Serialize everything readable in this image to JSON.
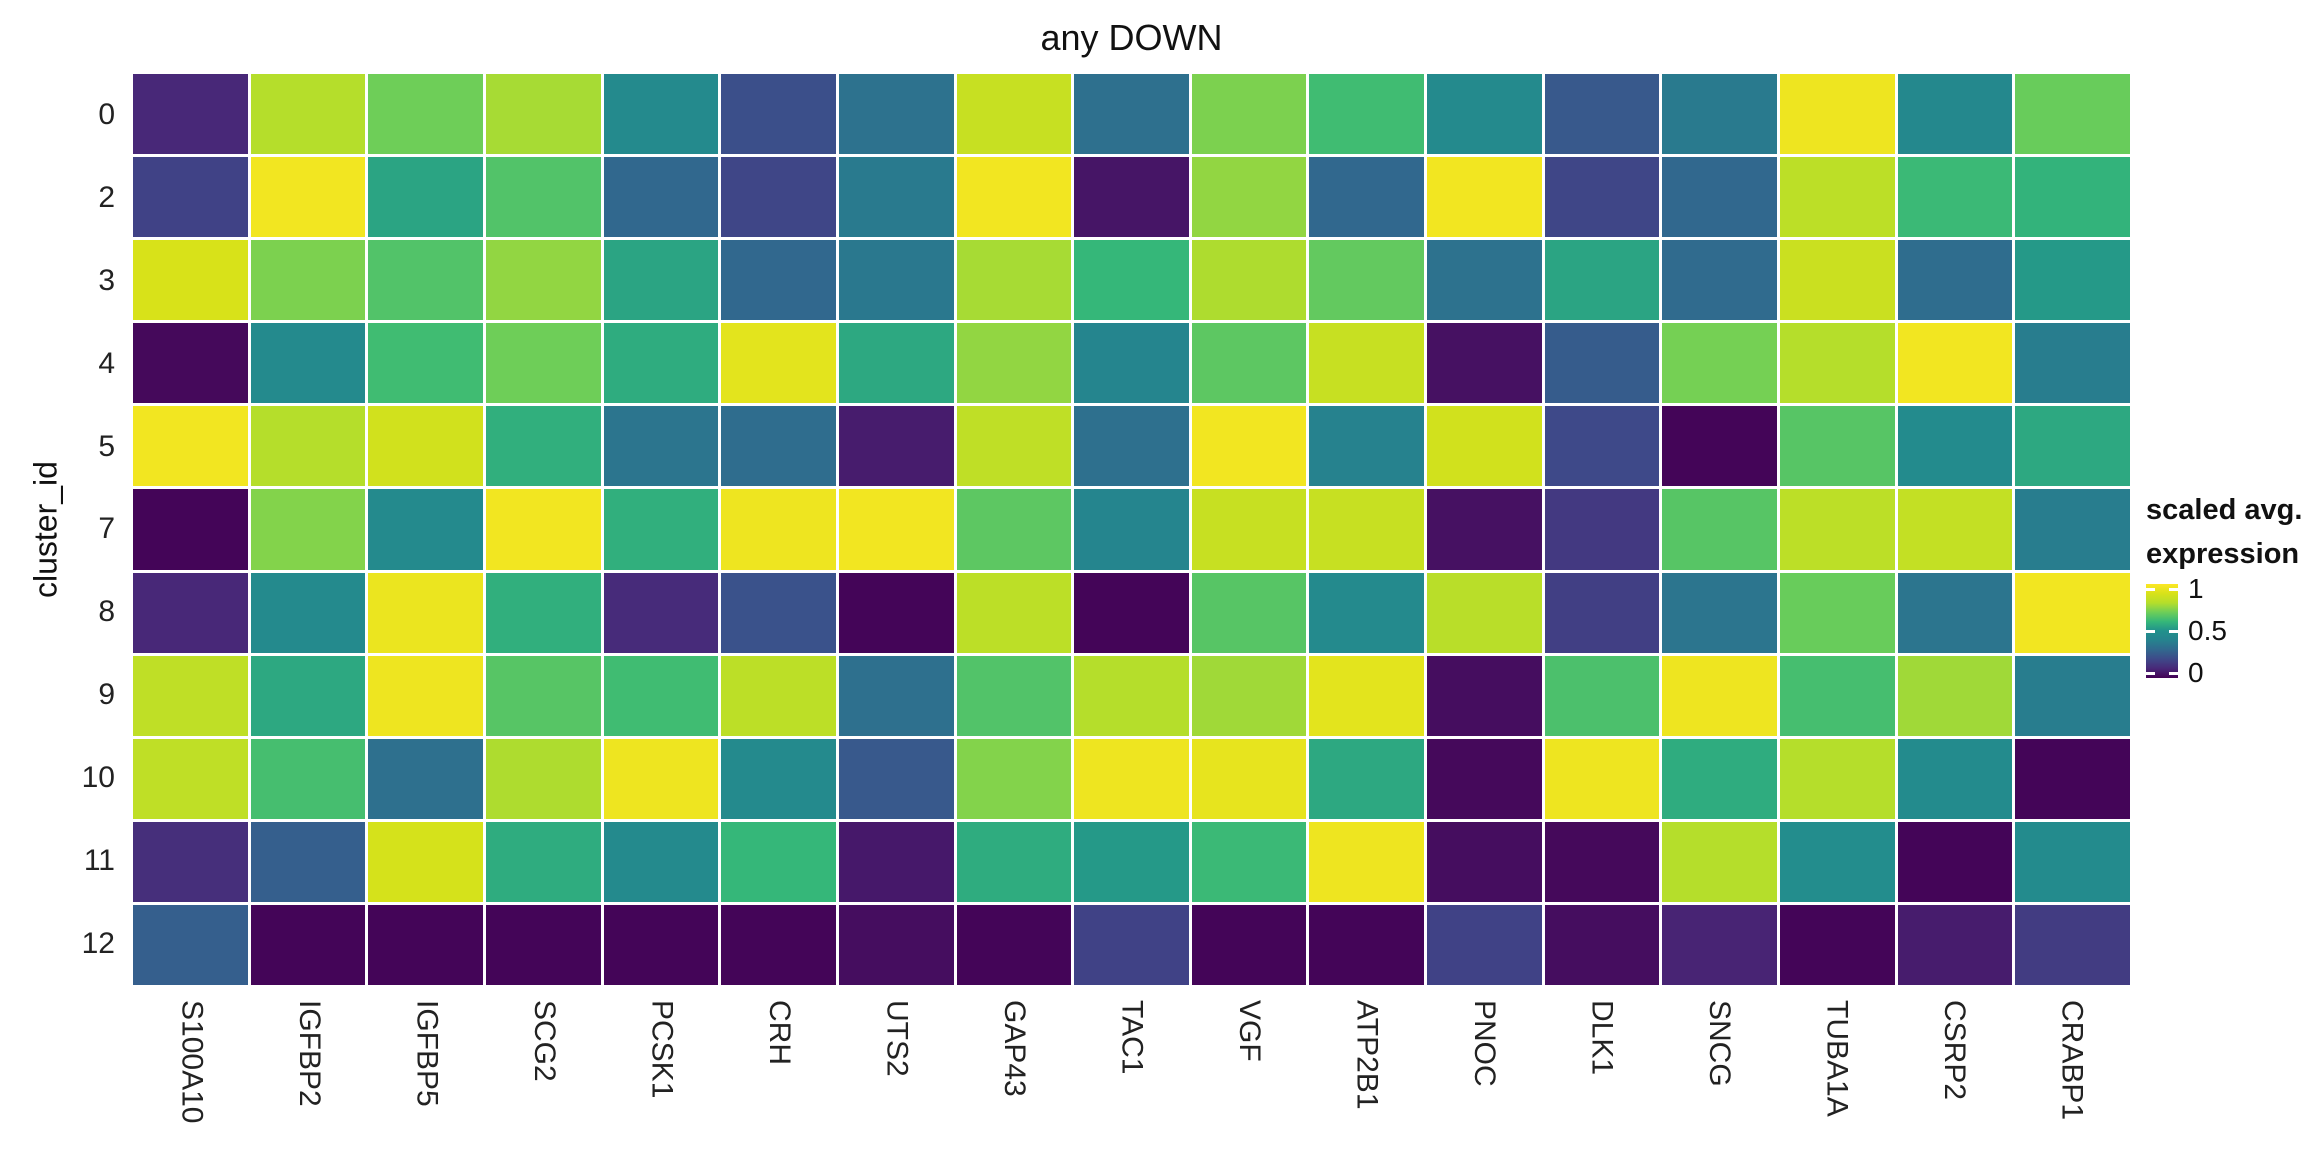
{
  "title": "any DOWN",
  "legend": {
    "title_line1": "scaled avg.",
    "title_line2": "expression",
    "ticks": [
      {
        "label": "1",
        "pos": 0.05
      },
      {
        "label": "0.5",
        "pos": 0.5
      },
      {
        "label": "0",
        "pos": 0.95
      }
    ]
  },
  "chart_data": {
    "type": "heatmap",
    "title": "any DOWN",
    "xlabel": "",
    "ylabel": "cluster_id",
    "legend_title": "scaled avg. expression",
    "legend_position": "right",
    "value_range": [
      0,
      1
    ],
    "columns": [
      "S100A10",
      "IGFBP2",
      "IGFBP5",
      "SCG2",
      "PCSK1",
      "CRH",
      "UTS2",
      "GAP43",
      "TAC1",
      "VGF",
      "ATP2B1",
      "PNOC",
      "DLK1",
      "SNCG",
      "TUBA1A",
      "CSRP2",
      "CRABP1"
    ],
    "rows": [
      "0",
      "2",
      "3",
      "4",
      "5",
      "7",
      "8",
      "9",
      "10",
      "11",
      "12"
    ],
    "values": [
      [
        0.1,
        0.8,
        0.7,
        0.78,
        0.45,
        0.22,
        0.34,
        0.85,
        0.33,
        0.72,
        0.62,
        0.45,
        0.25,
        0.37,
        0.96,
        0.44,
        0.69
      ],
      [
        0.18,
        0.97,
        0.55,
        0.65,
        0.3,
        0.19,
        0.37,
        0.97,
        0.05,
        0.75,
        0.3,
        0.97,
        0.19,
        0.3,
        0.82,
        0.61,
        0.59
      ],
      [
        0.9,
        0.72,
        0.65,
        0.75,
        0.55,
        0.3,
        0.36,
        0.78,
        0.6,
        0.79,
        0.68,
        0.34,
        0.55,
        0.31,
        0.86,
        0.32,
        0.52
      ],
      [
        0.02,
        0.45,
        0.62,
        0.7,
        0.57,
        0.93,
        0.56,
        0.75,
        0.42,
        0.67,
        0.85,
        0.04,
        0.26,
        0.71,
        0.8,
        0.97,
        0.38
      ],
      [
        0.97,
        0.8,
        0.88,
        0.58,
        0.35,
        0.32,
        0.07,
        0.83,
        0.33,
        0.97,
        0.4,
        0.88,
        0.2,
        0.01,
        0.66,
        0.46,
        0.56
      ],
      [
        0.01,
        0.73,
        0.45,
        0.97,
        0.58,
        0.96,
        0.97,
        0.67,
        0.42,
        0.85,
        0.85,
        0.04,
        0.15,
        0.66,
        0.82,
        0.84,
        0.38
      ],
      [
        0.1,
        0.45,
        0.95,
        0.58,
        0.11,
        0.23,
        0.01,
        0.82,
        0.01,
        0.66,
        0.45,
        0.81,
        0.17,
        0.35,
        0.69,
        0.35,
        0.97
      ],
      [
        0.83,
        0.56,
        0.96,
        0.66,
        0.62,
        0.82,
        0.33,
        0.65,
        0.8,
        0.77,
        0.93,
        0.03,
        0.64,
        0.96,
        0.63,
        0.77,
        0.38
      ],
      [
        0.83,
        0.63,
        0.33,
        0.79,
        0.96,
        0.45,
        0.25,
        0.73,
        0.96,
        0.94,
        0.56,
        0.02,
        0.96,
        0.57,
        0.8,
        0.46,
        0.01
      ],
      [
        0.12,
        0.27,
        0.89,
        0.57,
        0.45,
        0.6,
        0.06,
        0.57,
        0.52,
        0.61,
        0.96,
        0.03,
        0.02,
        0.8,
        0.47,
        0.01,
        0.46
      ],
      [
        0.27,
        0.01,
        0.01,
        0.01,
        0.01,
        0.01,
        0.03,
        0.01,
        0.18,
        0.01,
        0.01,
        0.18,
        0.03,
        0.09,
        0.01,
        0.07,
        0.16
      ]
    ],
    "colorscale": {
      "name": "viridis",
      "anchors": [
        "#440154",
        "#482878",
        "#3e4989",
        "#31688e",
        "#26828e",
        "#21918c",
        "#35b779",
        "#6ece58",
        "#b5de2b",
        "#d8e219",
        "#fde725"
      ]
    },
    "grid_gap_color": "#ffffff"
  }
}
